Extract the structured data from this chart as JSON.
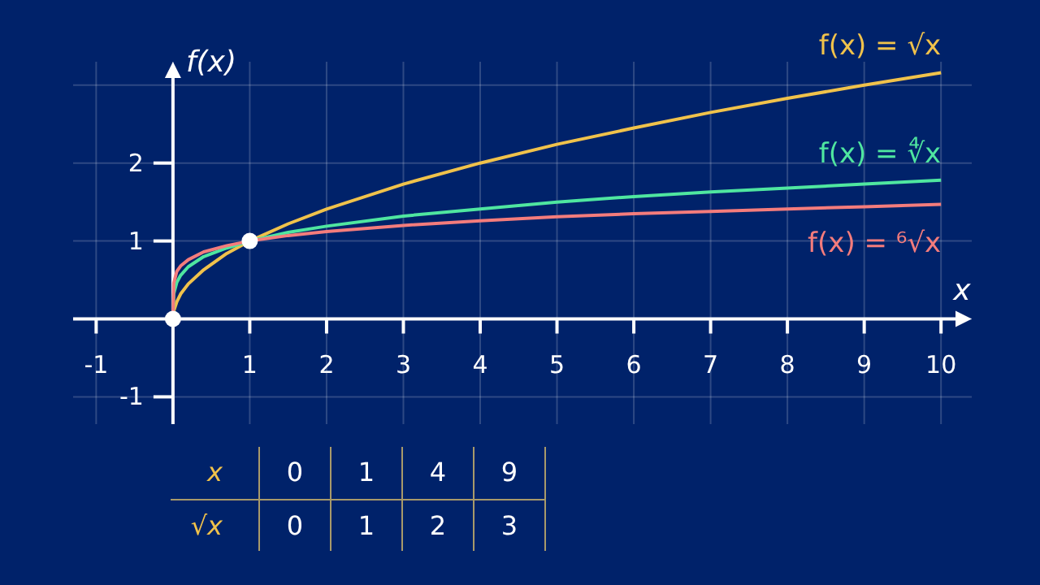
{
  "chart_data": [
    {
      "type": "line",
      "xlabel": "x",
      "ylabel": "f(x)",
      "xlim": [
        -1.3,
        10.4
      ],
      "ylim": [
        -1.35,
        3.3
      ],
      "xticks": [
        -1,
        {
          "value": 0,
          "label": null
        },
        1,
        2,
        3,
        4,
        5,
        6,
        7,
        8,
        9,
        10
      ],
      "yticks": [
        -1,
        {
          "value": 0,
          "label": null
        },
        1,
        2,
        {
          "value": 3,
          "label": null
        }
      ],
      "grid": true,
      "marker": "none",
      "line_style": "solid",
      "series": [
        {
          "name": "f(x) = √x",
          "color": "#f0c24b",
          "x": [
            0,
            0.01,
            0.05,
            0.1,
            0.2,
            0.4,
            0.7,
            1,
            1.5,
            2,
            3,
            4,
            5,
            6,
            7,
            8,
            9,
            10
          ],
          "values": [
            0,
            0.1,
            0.22,
            0.32,
            0.45,
            0.63,
            0.84,
            1,
            1.22,
            1.41,
            1.73,
            2,
            2.24,
            2.45,
            2.65,
            2.83,
            3,
            3.16
          ]
        },
        {
          "name": "f(x) = ∜x",
          "color": "#4fe6a0",
          "x": [
            0,
            0.01,
            0.05,
            0.1,
            0.2,
            0.4,
            0.7,
            1,
            1.5,
            2,
            3,
            4,
            5,
            6,
            7,
            8,
            9,
            10
          ],
          "values": [
            0,
            0.32,
            0.47,
            0.56,
            0.67,
            0.8,
            0.91,
            1,
            1.11,
            1.19,
            1.32,
            1.41,
            1.5,
            1.57,
            1.63,
            1.68,
            1.73,
            1.78
          ]
        },
        {
          "name": "f(x) = ⁶√x",
          "color": "#f47c7c",
          "x": [
            0,
            0.01,
            0.05,
            0.1,
            0.2,
            0.4,
            0.7,
            1,
            1.5,
            2,
            3,
            4,
            5,
            6,
            7,
            8,
            9,
            10
          ],
          "values": [
            0,
            0.46,
            0.61,
            0.68,
            0.76,
            0.86,
            0.94,
            1,
            1.07,
            1.12,
            1.2,
            1.26,
            1.31,
            1.35,
            1.38,
            1.41,
            1.44,
            1.47
          ]
        },
        {
          "type": "scatter",
          "marker": "circle",
          "color": "#ffffff",
          "x": [
            0,
            1
          ],
          "values": [
            0,
            1
          ]
        }
      ]
    },
    {
      "type": "other",
      "xlabel": "x",
      "ylabel": "√x",
      "categories": [
        "0",
        "1",
        "4",
        "9"
      ],
      "values": [
        0,
        1,
        2,
        3
      ],
      "data_labels": true
    }
  ]
}
